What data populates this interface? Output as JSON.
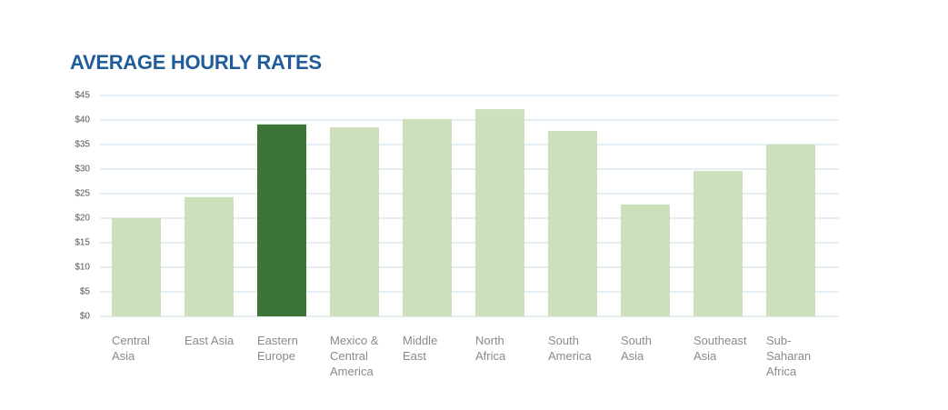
{
  "chart_data": {
    "type": "bar",
    "title": "AVERAGE HOURLY RATES",
    "categories": [
      "Central Asia",
      "East Asia",
      "Eastern Europe",
      "Mexico & Central America",
      "Middle East",
      "North Africa",
      "South America",
      "South Asia",
      "Southeast Asia",
      "Sub-Saharan Africa"
    ],
    "values": [
      20.0,
      24.3,
      39.1,
      38.5,
      40.2,
      42.2,
      37.8,
      22.8,
      29.6,
      35.0
    ],
    "colors": [
      "#cce0bb",
      "#cce0bb",
      "#3d7536",
      "#cce0bb",
      "#cce0bb",
      "#cce0bb",
      "#cce0bb",
      "#cce0bb",
      "#cce0bb",
      "#cce0bb"
    ],
    "ylim": [
      0,
      45
    ],
    "yticks": [
      {
        "value": 0,
        "label": "$0"
      },
      {
        "value": 5,
        "label": "$5"
      },
      {
        "value": 10,
        "label": "$10"
      },
      {
        "value": 15,
        "label": "$15"
      },
      {
        "value": 20,
        "label": "$20"
      },
      {
        "value": 25,
        "label": "$25"
      },
      {
        "value": 30,
        "label": "$30"
      },
      {
        "value": 35,
        "label": "$35"
      },
      {
        "value": 40,
        "label": "$40"
      },
      {
        "value": 45,
        "label": "$45"
      }
    ],
    "grid": true
  }
}
